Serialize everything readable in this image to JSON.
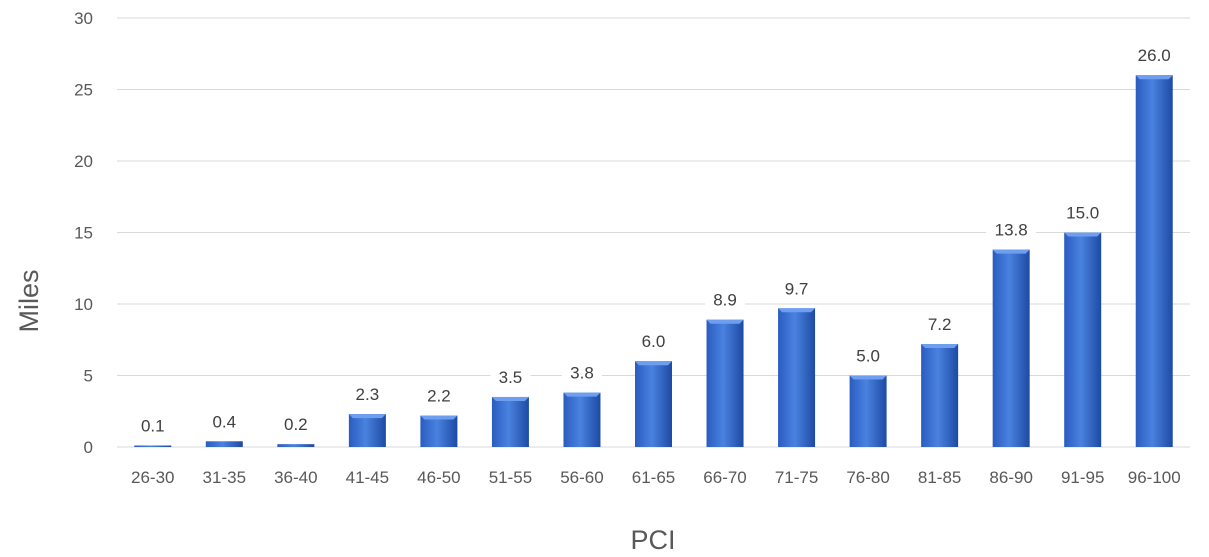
{
  "chart_data": {
    "type": "bar",
    "categories": [
      "26-30",
      "31-35",
      "36-40",
      "41-45",
      "46-50",
      "51-55",
      "56-60",
      "61-65",
      "66-70",
      "71-75",
      "76-80",
      "81-85",
      "86-90",
      "91-95",
      "96-100"
    ],
    "values": [
      0.1,
      0.4,
      0.2,
      2.3,
      2.2,
      3.5,
      3.8,
      6.0,
      8.9,
      9.7,
      5.0,
      7.2,
      13.8,
      15.0,
      26.0
    ],
    "data_labels": [
      "0.1",
      "0.4",
      "0.2",
      "2.3",
      "2.2",
      "3.5",
      "3.8",
      "6.0",
      "8.9",
      "9.7",
      "5.0",
      "7.2",
      "13.8",
      "15.0",
      "26.0"
    ],
    "y_ticks": [
      "0",
      "5",
      "10",
      "15",
      "20",
      "25",
      "30"
    ],
    "xlabel": "PCI",
    "ylabel": "Miles",
    "ylim": [
      0,
      30
    ],
    "grid": true,
    "legend": "none",
    "colors": {
      "bar": "#3a6fd0",
      "bar_dark": "#1f4ea8",
      "grid": "#d9d9d9",
      "text": "#595959"
    }
  }
}
